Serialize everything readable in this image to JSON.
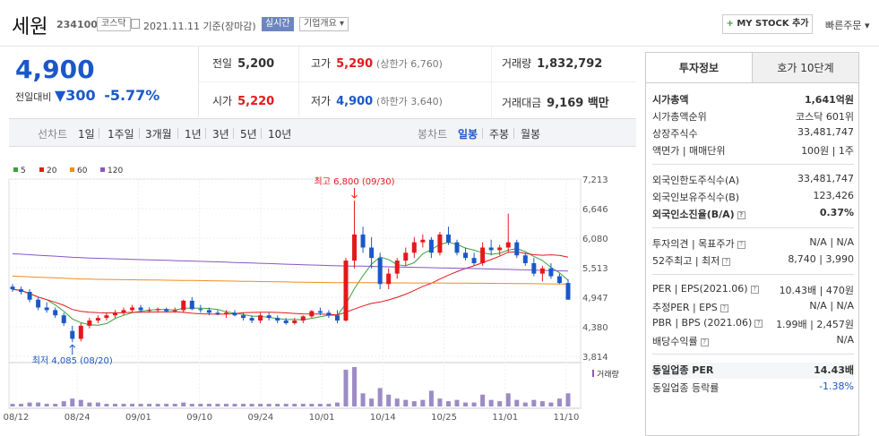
{
  "header": {
    "name": "세원",
    "code": "234100",
    "market": "코스닥",
    "date": "2021.11.11  기준(장마감)",
    "realtime": "실시간",
    "overview": "기업개요 ▾",
    "mystock": "MY STOCK 추가",
    "quick_order": "빠른주문 ▾"
  },
  "price": {
    "current": "4,900",
    "change_label": "전일대비",
    "change_value": "▼300",
    "change_pct": "-5.77%"
  },
  "info": {
    "prev_close_label": "전일",
    "prev_close": "5,200",
    "high_label": "고가",
    "high": "5,290",
    "upper_limit": "(상한가 6,760)",
    "volume_label": "거래량",
    "volume": "1,832,792",
    "open_label": "시가",
    "open": "5,220",
    "low_label": "저가",
    "low": "4,900",
    "lower_limit": "(하한가 3,640)",
    "amount_label": "거래대금",
    "amount": "9,169 백만"
  },
  "tabs": {
    "line_label": "선차트",
    "periods": [
      "1일",
      "1주일",
      "3개월",
      "1년",
      "3년",
      "5년",
      "10년"
    ],
    "candle_label": "봉차트",
    "candles": [
      "일봉",
      "주봉",
      "월봉"
    ]
  },
  "chart_data": {
    "type": "candlestick",
    "legend": [
      {
        "name": "5",
        "color": "#3aa13a"
      },
      {
        "name": "20",
        "color": "#e3191b"
      },
      {
        "name": "60",
        "color": "#f08c1e"
      },
      {
        "name": "120",
        "color": "#8a55c7"
      }
    ],
    "y_ticks": [
      "7,213",
      "6,646",
      "6,080",
      "5,513",
      "4,947",
      "4,380",
      "3,814"
    ],
    "ylim": [
      3814,
      7213
    ],
    "x_ticks": [
      "08/12",
      "08/24",
      "09/01",
      "09/10",
      "09/24",
      "10/01",
      "10/14",
      "10/25",
      "11/01",
      "11/10"
    ],
    "annotations": {
      "high": "최고 6,800 (09/30)",
      "low": "최저 4,085 (08/20)"
    },
    "volume_label": "거래량",
    "candles_ohlc": [
      [
        5150,
        5200,
        5050,
        5100
      ],
      [
        5100,
        5150,
        5000,
        5050
      ],
      [
        5050,
        5100,
        4850,
        4900
      ],
      [
        4900,
        4950,
        4700,
        4750
      ],
      [
        4750,
        4850,
        4650,
        4700
      ],
      [
        4700,
        4750,
        4550,
        4600
      ],
      [
        4600,
        4650,
        4400,
        4450
      ],
      [
        4300,
        4400,
        4085,
        4150
      ],
      [
        4150,
        4450,
        4100,
        4400
      ],
      [
        4400,
        4550,
        4350,
        4500
      ],
      [
        4500,
        4600,
        4450,
        4550
      ],
      [
        4550,
        4650,
        4500,
        4600
      ],
      [
        4600,
        4700,
        4550,
        4650
      ],
      [
        4650,
        4750,
        4600,
        4700
      ],
      [
        4700,
        4800,
        4650,
        4750
      ],
      [
        4750,
        4800,
        4650,
        4700
      ],
      [
        4700,
        4750,
        4650,
        4700
      ],
      [
        4700,
        4750,
        4650,
        4720
      ],
      [
        4720,
        4750,
        4650,
        4680
      ],
      [
        4680,
        4750,
        4650,
        4700
      ],
      [
        4700,
        4900,
        4650,
        4880
      ],
      [
        4880,
        4950,
        4700,
        4720
      ],
      [
        4720,
        4800,
        4650,
        4700
      ],
      [
        4700,
        4750,
        4600,
        4650
      ],
      [
        4650,
        4700,
        4600,
        4620
      ],
      [
        4620,
        4700,
        4550,
        4650
      ],
      [
        4650,
        4700,
        4580,
        4600
      ],
      [
        4600,
        4650,
        4500,
        4550
      ],
      [
        4550,
        4600,
        4450,
        4500
      ],
      [
        4500,
        4650,
        4450,
        4600
      ],
      [
        4600,
        4650,
        4500,
        4550
      ],
      [
        4550,
        4600,
        4450,
        4500
      ],
      [
        4500,
        4550,
        4420,
        4450
      ],
      [
        4450,
        4550,
        4420,
        4500
      ],
      [
        4500,
        4600,
        4450,
        4580
      ],
      [
        4580,
        4700,
        4550,
        4680
      ],
      [
        4680,
        4750,
        4600,
        4650
      ],
      [
        4650,
        4700,
        4550,
        4600
      ],
      [
        4600,
        4700,
        4450,
        4500
      ],
      [
        4500,
        5700,
        4480,
        5650
      ],
      [
        5650,
        6800,
        5500,
        6150
      ],
      [
        6150,
        6300,
        5800,
        5900
      ],
      [
        5900,
        6100,
        5500,
        5700
      ],
      [
        5700,
        5800,
        5100,
        5200
      ],
      [
        5200,
        5500,
        5100,
        5400
      ],
      [
        5400,
        5700,
        5300,
        5650
      ],
      [
        5650,
        5900,
        5550,
        5800
      ],
      [
        5800,
        6100,
        5700,
        6000
      ],
      [
        6000,
        6150,
        5900,
        6050
      ],
      [
        6050,
        6100,
        5700,
        5800
      ],
      [
        5800,
        6200,
        5750,
        6150
      ],
      [
        6150,
        6300,
        5950,
        6000
      ],
      [
        6000,
        6050,
        5750,
        5800
      ],
      [
        5800,
        5900,
        5650,
        5700
      ],
      [
        5700,
        5800,
        5550,
        5600
      ],
      [
        5600,
        6000,
        5550,
        5900
      ],
      [
        5900,
        6050,
        5750,
        5850
      ],
      [
        5850,
        5950,
        5750,
        5900
      ],
      [
        5900,
        6550,
        5800,
        6000
      ],
      [
        6000,
        6050,
        5700,
        5750
      ],
      [
        5750,
        5800,
        5550,
        5600
      ],
      [
        5600,
        5700,
        5350,
        5400
      ],
      [
        5400,
        5550,
        5250,
        5500
      ],
      [
        5500,
        5600,
        5300,
        5350
      ],
      [
        5350,
        5400,
        5200,
        5220
      ],
      [
        5220,
        5290,
        4900,
        4900
      ]
    ],
    "volumes": [
      2,
      2,
      3,
      3,
      2,
      2,
      4,
      6,
      5,
      3,
      3,
      2,
      2,
      2,
      2,
      2,
      2,
      2,
      2,
      2,
      3,
      2,
      2,
      2,
      2,
      2,
      2,
      2,
      2,
      2,
      2,
      2,
      2,
      2,
      2,
      2,
      2,
      2,
      3,
      28,
      30,
      10,
      6,
      14,
      9,
      6,
      5,
      4,
      5,
      12,
      6,
      4,
      5,
      3,
      3,
      9,
      5,
      4,
      10,
      5,
      3,
      5,
      4,
      3,
      6,
      10
    ]
  },
  "right": {
    "tab_invest": "투자정보",
    "tab_hoga": "호가 10단계",
    "market_cap_label": "시가총액",
    "market_cap": "1,641억원",
    "market_cap_rank_label": "시가총액순위",
    "market_cap_rank": "코스닥 601위",
    "shares_label": "상장주식수",
    "shares": "33,481,747",
    "par_label": "액면가 | 매매단위",
    "par": "100원 | 1주",
    "foreign_limit_label": "외국인한도주식수(A)",
    "foreign_limit": "33,481,747",
    "foreign_hold_label": "외국인보유주식수(B)",
    "foreign_hold": "123,426",
    "foreign_rate_label": "외국인소진율(B/A)",
    "foreign_rate": "0.37%",
    "opinion_label": "투자의견 | 목표주가",
    "opinion": "N/A | N/A",
    "w52_label": "52주최고 | 최저",
    "w52": "8,740 | 3,990",
    "per_label": "PER | EPS(2021.06)",
    "per": "10.43배 | 470원",
    "est_per_label": "추정PER | EPS",
    "est_per": "N/A | N/A",
    "pbr_label": "PBR | BPS (2021.06)",
    "pbr": "1.99배 | 2,457원",
    "dividend_label": "배당수익률",
    "dividend": "N/A",
    "sector_per_label": "동일업종 PER",
    "sector_per": "14.43배",
    "sector_rate_label": "동일업종 등락률",
    "sector_rate": "-1.38%"
  }
}
